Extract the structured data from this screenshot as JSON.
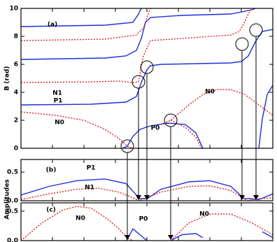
{
  "chart_data": [
    {
      "type": "line",
      "ylabel": "B (rad)",
      "xlim": [
        0,
        360
      ],
      "ylim": [
        0,
        10
      ],
      "yticks": [
        0,
        2,
        4,
        6,
        8,
        10
      ],
      "xticks": [
        0,
        45,
        90,
        135,
        180,
        225,
        270,
        315,
        360
      ],
      "annotations": [
        "(a)",
        "N1",
        "P1",
        "N0",
        "P0",
        "N0"
      ],
      "highlights": [
        {
          "x": 152,
          "y": 0.15
        },
        {
          "x": 168,
          "y": 4.75
        },
        {
          "x": 180,
          "y": 5.8
        },
        {
          "x": 214,
          "y": 2.0
        },
        {
          "x": 316,
          "y": 7.45
        },
        {
          "x": 336,
          "y": 8.45
        }
      ],
      "series": [
        {
          "color": "#1f2fd6",
          "dashed": false,
          "x": [
            0,
            100,
            150,
            165,
            172,
            180,
            185,
            200,
            250,
            300,
            315,
            325,
            335,
            345,
            360
          ],
          "y": [
            3.1,
            3.15,
            3.3,
            3.7,
            4.7,
            5.6,
            5.9,
            6.0,
            6.05,
            6.1,
            6.2,
            6.6,
            7.6,
            8.35,
            8.5
          ]
        },
        {
          "color": "#1f2fd6",
          "dashed": false,
          "x": [
            0,
            120,
            150,
            165,
            172,
            178,
            185,
            230,
            300,
            330,
            335
          ],
          "y": [
            6.35,
            6.45,
            6.6,
            7.0,
            7.85,
            9.0,
            9.35,
            9.5,
            9.6,
            9.9,
            10
          ]
        },
        {
          "color": "#1f2fd6",
          "dashed": false,
          "x": [
            0,
            120,
            160,
            168,
            172
          ],
          "y": [
            8.7,
            8.8,
            9.0,
            9.6,
            10
          ]
        },
        {
          "color": "#1f2fd6",
          "dashed": false,
          "x": [
            145,
            152,
            160,
            170,
            185,
            210,
            235,
            250,
            260
          ],
          "y": [
            0,
            0.15,
            0.85,
            1.35,
            1.6,
            1.8,
            1.7,
            1.1,
            0
          ]
        },
        {
          "color": "#1f2fd6",
          "dashed": false,
          "x": [
            340,
            345,
            352,
            360
          ],
          "y": [
            0,
            2.1,
            3.85,
            4.5
          ]
        },
        {
          "color": "#e02020",
          "dashed": true,
          "x": [
            0,
            50,
            90,
            120,
            140,
            152,
            160
          ],
          "y": [
            2.6,
            2.35,
            2.0,
            1.35,
            0.7,
            0.15,
            0
          ]
        },
        {
          "color": "#e02020",
          "dashed": true,
          "x": [
            0,
            100,
            140,
            160,
            168,
            175,
            185,
            230,
            300,
            312,
            318,
            325,
            330
          ],
          "y": [
            4.7,
            4.75,
            4.8,
            4.7,
            4.75,
            6.6,
            7.7,
            7.85,
            8.1,
            8.35,
            8.85,
            9.6,
            10
          ]
        },
        {
          "color": "#e02020",
          "dashed": true,
          "x": [
            0,
            120,
            165,
            175,
            180,
            185
          ],
          "y": [
            7.7,
            7.8,
            8.1,
            8.6,
            9.35,
            10
          ]
        },
        {
          "color": "#e02020",
          "dashed": true,
          "x": [
            200,
            214,
            240,
            260,
            280,
            300,
            320,
            340,
            360
          ],
          "y": [
            1.7,
            2.0,
            3.1,
            3.85,
            4.2,
            4.2,
            3.85,
            3.1,
            2.35
          ]
        },
        {
          "color": "#e02020",
          "dashed": true,
          "x": [
            214,
            235,
            250,
            258
          ],
          "y": [
            2.0,
            1.5,
            0.8,
            0
          ]
        }
      ]
    },
    {
      "type": "line",
      "ylabel": "Amplitudes",
      "xlim": [
        0,
        360
      ],
      "ylim": [
        0,
        0.72
      ],
      "yticks": [
        {
          "value": 0,
          "label": "0.0"
        },
        {
          "value": 0.5,
          "label": "0.5"
        }
      ],
      "xticks": [
        0,
        45,
        90,
        135,
        180,
        225,
        270,
        315,
        360
      ],
      "annotations": [
        "(b)",
        "P1",
        "N1"
      ],
      "series": [
        {
          "color": "#1f2fd6",
          "dashed": false,
          "x": [
            0,
            40,
            80,
            120,
            150,
            165,
            170,
            175,
            180,
            200,
            240,
            270,
            300,
            315,
            320,
            325,
            330,
            340,
            360
          ],
          "y": [
            0.1,
            0.25,
            0.35,
            0.38,
            0.3,
            0.1,
            0.03,
            0.04,
            0.03,
            0.2,
            0.33,
            0.35,
            0.25,
            0.08,
            0.03,
            0.04,
            0.03,
            0.02,
            0.12
          ]
        },
        {
          "color": "#e02020",
          "dashed": true,
          "x": [
            0,
            40,
            80,
            110,
            140,
            160,
            170,
            180,
            200,
            240,
            270,
            300,
            318,
            325,
            335,
            360
          ],
          "y": [
            0.02,
            0.12,
            0.2,
            0.22,
            0.15,
            0.05,
            0,
            0.05,
            0.15,
            0.25,
            0.26,
            0.18,
            0.04,
            0,
            0.03,
            0.05
          ]
        }
      ]
    },
    {
      "type": "line",
      "xlim": [
        0,
        360
      ],
      "ylim": [
        0,
        0.64
      ],
      "yticks": [
        {
          "value": 0,
          "label": "0.0"
        },
        {
          "value": 0.5,
          "label": "0.5"
        }
      ],
      "xticks": [
        0,
        45,
        90,
        135,
        180,
        225,
        270,
        315,
        360
      ],
      "annotations": [
        "(c)",
        "N0",
        "P0",
        "N0"
      ],
      "series": [
        {
          "color": "#e02020",
          "dashed": true,
          "x": [
            0,
            30,
            60,
            80,
            100,
            120,
            140,
            152,
            160
          ],
          "y": [
            0,
            0.3,
            0.52,
            0.58,
            0.55,
            0.4,
            0.2,
            0.04,
            0
          ]
        },
        {
          "color": "#e02020",
          "dashed": true,
          "x": [
            214,
            240,
            270,
            300,
            330,
            360
          ],
          "y": [
            0,
            0.3,
            0.45,
            0.45,
            0.3,
            0.1
          ]
        },
        {
          "color": "#1f2fd6",
          "dashed": false,
          "x": [
            150,
            152,
            160,
            170,
            180
          ],
          "y": [
            0,
            0.02,
            0.2,
            0.1,
            0
          ]
        },
        {
          "color": "#1f2fd6",
          "dashed": false,
          "x": [
            214,
            230,
            250,
            260
          ],
          "y": [
            0,
            0.1,
            0.12,
            0.05
          ]
        },
        {
          "color": "#1f2fd6",
          "dashed": false,
          "x": [
            345,
            360
          ],
          "y": [
            0.15,
            0.05
          ]
        }
      ]
    }
  ]
}
